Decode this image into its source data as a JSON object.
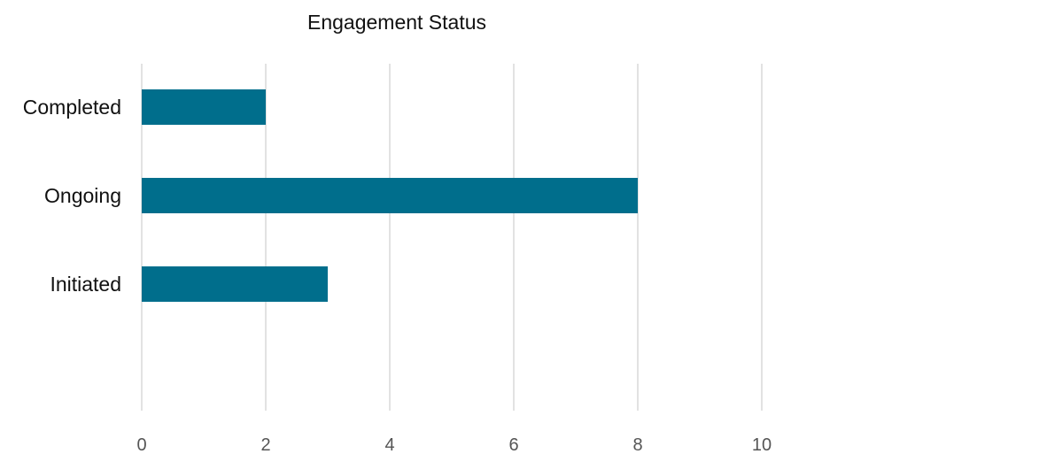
{
  "chart_data": {
    "type": "bar",
    "orientation": "horizontal",
    "title": "Engagement Status",
    "xlabel": "",
    "ylabel": "",
    "categories": [
      "Completed",
      "Ongoing",
      "Initiated"
    ],
    "values": [
      2,
      8,
      3
    ],
    "xlim": [
      0,
      10
    ],
    "x_ticks": [
      0,
      2,
      4,
      6,
      8,
      10
    ],
    "grid": "vertical",
    "legend": "none",
    "bar_color": "#006E8C",
    "grid_color": "#D9D9D9"
  }
}
